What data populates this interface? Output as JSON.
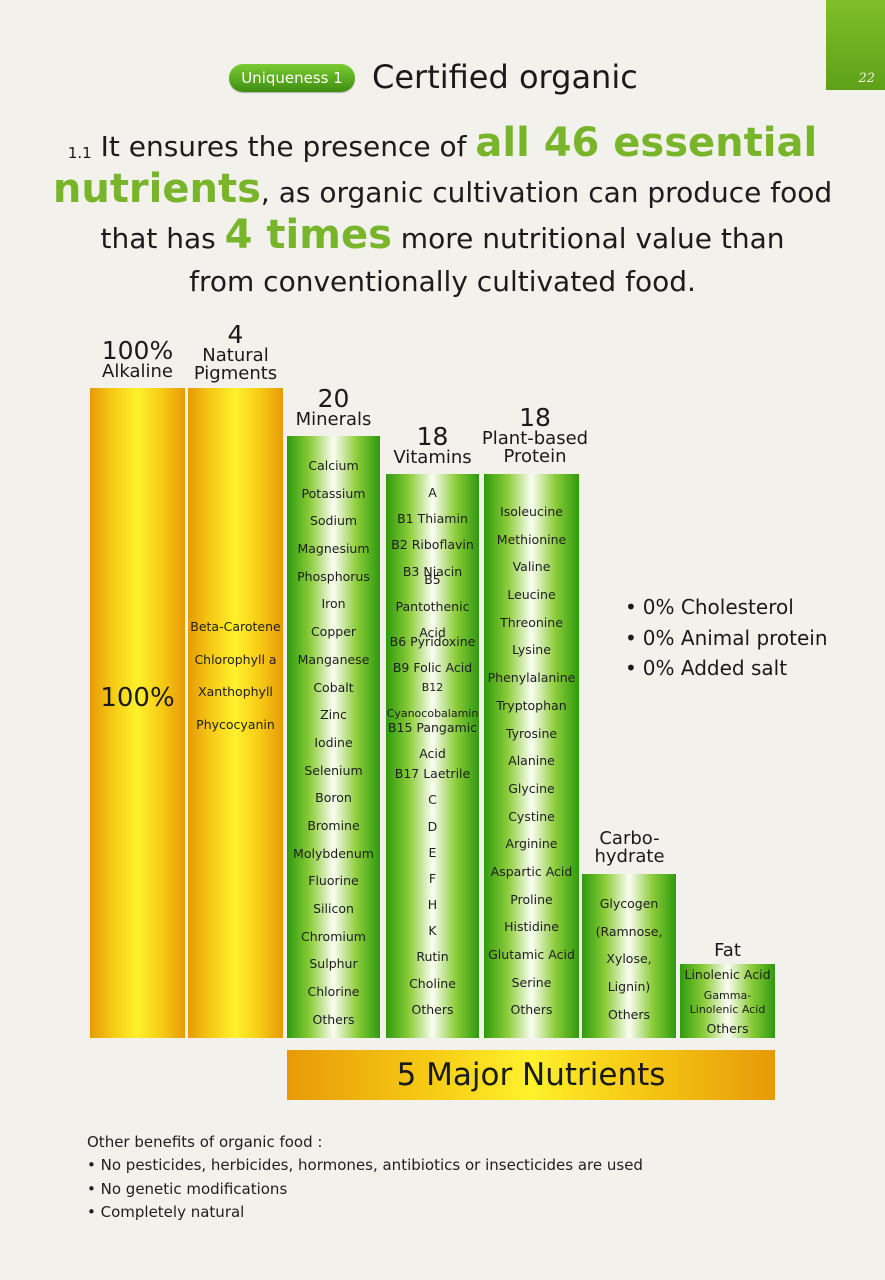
{
  "page_number": "22",
  "badge": "Uniqueness 1",
  "heading": "Certified organic",
  "intro": {
    "number": "1.1",
    "part1": "It ensures the presence of",
    "highlight1a": "all 46 essential",
    "highlight1b": "nutrients",
    "part2": ", as organic cultivation can produce food",
    "part3": "that has",
    "highlight2": "4 times",
    "part4": "more nutritional value than",
    "part5": "from conventionally cultivated food."
  },
  "columns": {
    "alkaline": {
      "count": "100%",
      "title": "Alkaline",
      "bar_label": "100%",
      "value": 100
    },
    "pigments": {
      "count": "4",
      "title_line1": "Natural",
      "title_line2": "Pigments",
      "items": [
        "Beta-Carotene",
        "Chlorophyll a",
        "Xanthophyll",
        "Phycocyanin"
      ]
    },
    "minerals": {
      "count": "20",
      "title": "Minerals",
      "items": [
        "Calcium",
        "Potassium",
        "Sodium",
        "Magnesium",
        "Phosphorus",
        "Iron",
        "Copper",
        "Manganese",
        "Cobalt",
        "Zinc",
        "Iodine",
        "Selenium",
        "Boron",
        "Bromine",
        "Molybdenum",
        "Fluorine",
        "Silicon",
        "Chromium",
        "Sulphur",
        "Chlorine",
        "Others"
      ]
    },
    "vitamins": {
      "count": "18",
      "title": "Vitamins",
      "items": [
        "A",
        "B1 Thiamin",
        "B2 Riboflavin",
        "B3 Niacin",
        "B5 Pantothenic Acid",
        "B6 Pyridoxine",
        "B9 Folic Acid",
        "B12 Cyanocobalamin",
        "B15 Pangamic Acid",
        "B17 Laetrile",
        "C",
        "D",
        "E",
        "F",
        "H",
        "K",
        "Rutin",
        "Choline",
        "Others"
      ]
    },
    "protein": {
      "count": "18",
      "title_line1": "Plant-based",
      "title_line2": "Protein",
      "items": [
        "Isoleucine",
        "Methionine",
        "Valine",
        "Leucine",
        "Threonine",
        "Lysine",
        "Phenylalanine",
        "Tryptophan",
        "Tyrosine",
        "Alanine",
        "Glycine",
        "Cystine",
        "Arginine",
        "Aspartic Acid",
        "Proline",
        "Histidine",
        "Glutamic Acid",
        "Serine",
        "Others"
      ]
    },
    "carbohydrate": {
      "title_line1": "Carbo-",
      "title_line2": "hydrate",
      "items": [
        "Glycogen",
        "(Ramnose,",
        "Xylose,",
        "Lignin)",
        "Others"
      ]
    },
    "fat": {
      "title": "Fat",
      "items": [
        "Linolenic Acid",
        "Gamma-Linolenic Acid",
        "Others"
      ]
    }
  },
  "footer_label": "5 Major Nutrients",
  "claims": [
    "0% Cholesterol",
    "0% Animal protein",
    "0% Added salt"
  ],
  "benefits": {
    "title": "Other benefits of organic food :",
    "items": [
      "No pesticides, herbicides, hormones, antibiotics or insecticides are used",
      "No genetic modifications",
      "Completely natural"
    ]
  },
  "colors": {
    "accent_green": "#79b52a",
    "bar_orange": "#f7cc15",
    "bar_green": "#8ccd3a"
  }
}
